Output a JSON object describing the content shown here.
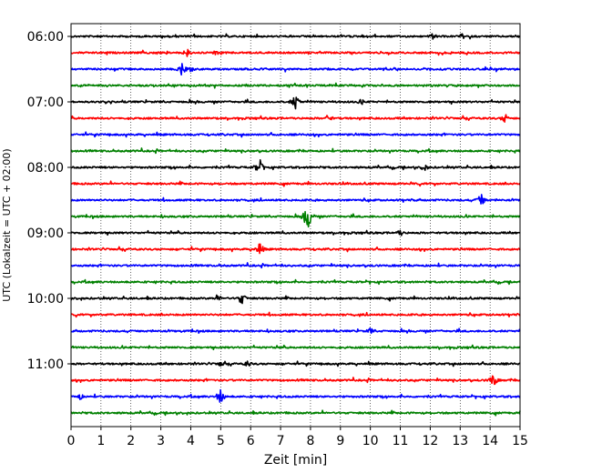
{
  "chart_data": {
    "type": "line",
    "title": "",
    "xlabel": "Zeit  [min]",
    "ylabel": "UTC (Lokalzeit = UTC + 02:00)",
    "xlim": [
      0,
      15
    ],
    "x_ticks": [
      "0",
      "1",
      "2",
      "3",
      "4",
      "5",
      "6",
      "7",
      "8",
      "9",
      "10",
      "11",
      "12",
      "13",
      "14",
      "15"
    ],
    "y_tick_labels": [
      "06:00",
      "07:00",
      "08:00",
      "09:00",
      "10:00",
      "11:00"
    ],
    "y_tick_rows": [
      0,
      4,
      8,
      12,
      16,
      20
    ],
    "grid": "vertical-dotted",
    "trace_colors": [
      "#000000",
      "#ff0000",
      "#0000ff",
      "#008000"
    ],
    "rows": [
      {
        "hour_offset": 0.0,
        "color": "#000000",
        "events": [
          [
            12.1,
            4
          ]
        ]
      },
      {
        "hour_offset": 0.25,
        "color": "#ff0000",
        "events": [
          [
            3.9,
            6
          ],
          [
            4.8,
            4
          ]
        ]
      },
      {
        "hour_offset": 0.5,
        "color": "#0000ff",
        "events": [
          [
            3.7,
            8
          ],
          [
            4.0,
            4
          ]
        ]
      },
      {
        "hour_offset": 0.75,
        "color": "#008000",
        "events": []
      },
      {
        "hour_offset": 1.0,
        "color": "#000000",
        "events": [
          [
            7.5,
            9
          ],
          [
            9.7,
            4
          ]
        ]
      },
      {
        "hour_offset": 1.25,
        "color": "#ff0000",
        "events": [
          [
            8.6,
            5
          ],
          [
            14.5,
            6
          ]
        ]
      },
      {
        "hour_offset": 1.5,
        "color": "#0000ff",
        "events": []
      },
      {
        "hour_offset": 1.75,
        "color": "#008000",
        "events": []
      },
      {
        "hour_offset": 2.0,
        "color": "#000000",
        "events": [
          [
            6.3,
            10
          ],
          [
            11.8,
            5
          ]
        ]
      },
      {
        "hour_offset": 2.25,
        "color": "#ff0000",
        "events": []
      },
      {
        "hour_offset": 2.5,
        "color": "#0000ff",
        "events": [
          [
            13.7,
            8
          ]
        ]
      },
      {
        "hour_offset": 2.75,
        "color": "#008000",
        "events": [
          [
            7.9,
            16
          ]
        ]
      },
      {
        "hour_offset": 3.0,
        "color": "#000000",
        "events": [
          [
            11.0,
            4
          ]
        ]
      },
      {
        "hour_offset": 3.25,
        "color": "#ff0000",
        "events": [
          [
            6.3,
            8
          ]
        ]
      },
      {
        "hour_offset": 3.5,
        "color": "#0000ff",
        "events": []
      },
      {
        "hour_offset": 3.75,
        "color": "#008000",
        "events": []
      },
      {
        "hour_offset": 4.0,
        "color": "#000000",
        "events": [
          [
            4.9,
            5
          ],
          [
            5.7,
            8
          ]
        ]
      },
      {
        "hour_offset": 4.25,
        "color": "#ff0000",
        "events": []
      },
      {
        "hour_offset": 4.5,
        "color": "#0000ff",
        "events": [
          [
            10.0,
            4
          ]
        ]
      },
      {
        "hour_offset": 4.75,
        "color": "#008000",
        "events": []
      },
      {
        "hour_offset": 5.0,
        "color": "#000000",
        "events": [
          [
            5.0,
            4
          ],
          [
            5.9,
            4
          ]
        ]
      },
      {
        "hour_offset": 5.25,
        "color": "#ff0000",
        "events": [
          [
            14.1,
            8
          ]
        ]
      },
      {
        "hour_offset": 5.5,
        "color": "#0000ff",
        "events": [
          [
            0.3,
            4
          ],
          [
            5.0,
            9
          ]
        ]
      },
      {
        "hour_offset": 5.75,
        "color": "#008000",
        "events": []
      }
    ]
  }
}
